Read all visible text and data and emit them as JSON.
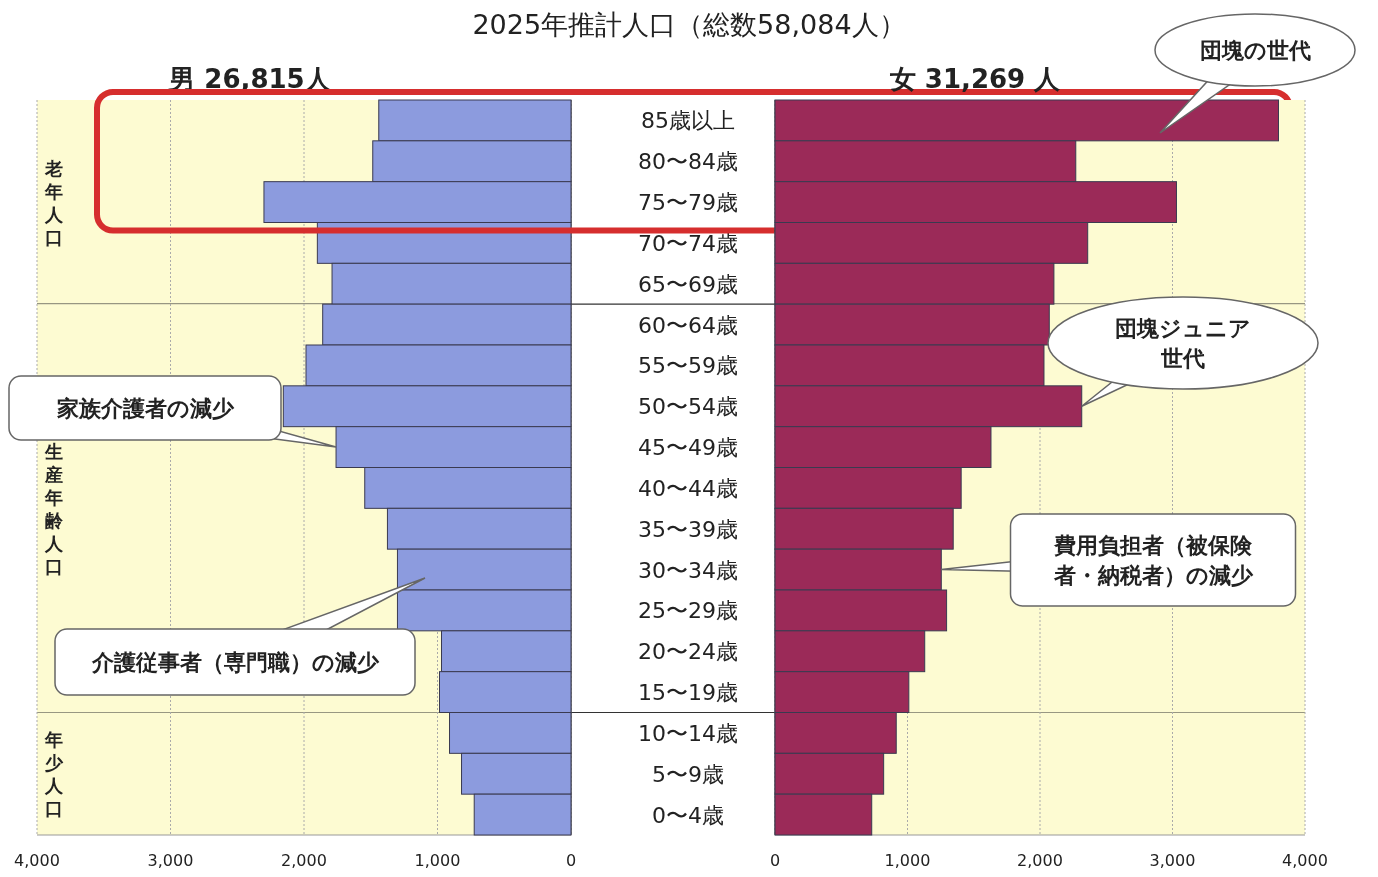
{
  "chart_data": [
    {
      "type": "bar",
      "orientation": "horizontal",
      "title": "男 26,815人",
      "annotations": [
        "2025年推計人口（総数58,084人）",
        {
          "text": "家族介護者の減少",
          "x": 1760,
          "y": "45〜49歳"
        },
        "介護従事者（専門職）の減少"
      ],
      "categories": [
        "85歳以上",
        "80〜84歳",
        "75〜79歳",
        "70〜74歳",
        "65〜69歳",
        "60〜64歳",
        "55〜59歳",
        "50〜54歳",
        "45〜49歳",
        "40〜44歳",
        "35〜39歳",
        "30〜34歳",
        "25〜29歳",
        "20〜24歳",
        "15〜19歳",
        "10〜14歳",
        "5〜9歳",
        "0〜4歳"
      ],
      "series": [
        {
          "color": "#8c9bde",
          "values": [
            1440,
            1485,
            2300,
            1900,
            1790,
            1860,
            1985,
            2155,
            1760,
            1545,
            1375,
            1300,
            1300,
            970,
            985,
            910,
            820,
            725
          ]
        }
      ],
      "xlim": [
        4000,
        0
      ],
      "xticks": [
        {
          "value": 4000,
          "label": "4,000"
        },
        {
          "value": 3000,
          "label": "3,000"
        },
        {
          "value": 2000,
          "label": "2,000"
        },
        {
          "value": 1000,
          "label": "1,000"
        },
        0
      ],
      "grid": "x",
      "bands": [
        {
          "axis": "y",
          "from": "85歳以上",
          "to": "65〜69歳",
          "label": "老年人口",
          "color": "#fdfbd2"
        },
        {
          "axis": "y",
          "from": "60〜64歳",
          "to": "15〜19歳",
          "label": "生産年齢人口",
          "color": "#fdfbd2"
        },
        {
          "axis": "y",
          "from": "10〜14歳",
          "to": "0〜4歳",
          "label": "年少人口",
          "color": "#fdfbd2"
        }
      ]
    },
    {
      "type": "bar",
      "orientation": "horizontal",
      "title": "女 31,269 人",
      "tick_labels": "x",
      "annotations": [
        "団塊の世代",
        {
          "text": "団塊ジュニア世代",
          "x": 2315,
          "y": "50〜54歳"
        },
        {
          "text": "費用負担者（被保険者・納税者）の減少",
          "x": 1255,
          "y": "30〜34歳"
        }
      ],
      "categories": [
        "85歳以上",
        "80〜84歳",
        "75〜79歳",
        "70〜74歳",
        "65〜69歳",
        "60〜64歳",
        "55〜59歳",
        "50〜54歳",
        "45〜49歳",
        "40〜44歳",
        "35〜39歳",
        "30〜34歳",
        "25〜29歳",
        "20〜24歳",
        "15〜19歳",
        "10〜14歳",
        "5〜9歳",
        "0〜4歳"
      ],
      "series": [
        {
          "color": "#9b2a58",
          "values": [
            3800,
            2270,
            3030,
            2360,
            2105,
            2070,
            2030,
            2315,
            1630,
            1405,
            1345,
            1255,
            1295,
            1130,
            1010,
            915,
            820,
            730
          ]
        }
      ],
      "xlim": [
        0,
        4000
      ],
      "xticks": [
        0,
        {
          "value": 1000,
          "label": "1,000"
        },
        {
          "value": 2000,
          "label": "2,000"
        },
        {
          "value": 3000,
          "label": "3,000"
        },
        {
          "value": 4000,
          "label": "4,000"
        }
      ],
      "grid": "x",
      "bands": [
        {
          "axis": "y",
          "from": "85歳以上",
          "to": "65〜69歳",
          "color": "#fdfbd2"
        },
        {
          "axis": "y",
          "from": "60〜64歳",
          "to": "15〜19歳",
          "color": "#fdfbd2"
        },
        {
          "axis": "y",
          "from": "10〜14歳",
          "to": "0〜4歳",
          "color": "#fdfbd2"
        }
      ]
    }
  ]
}
